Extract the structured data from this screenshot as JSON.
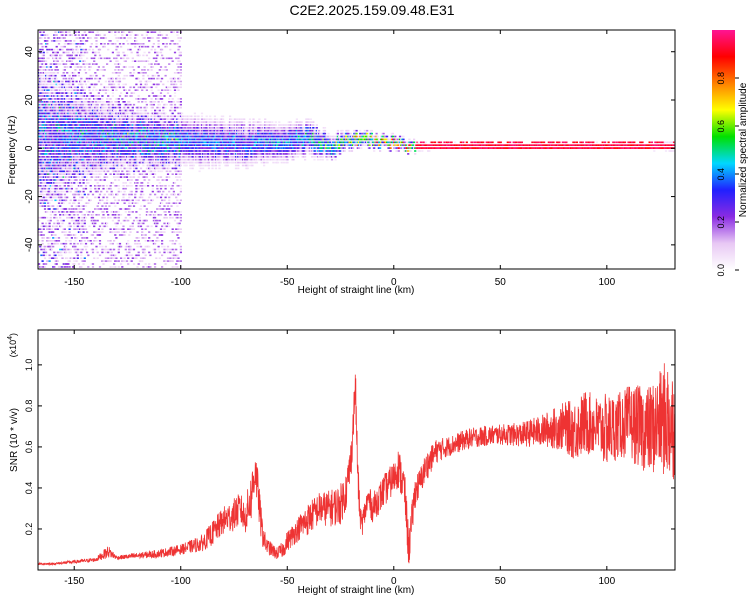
{
  "title": "C2E2.2025.159.09.48.E31",
  "chart_data": [
    {
      "type": "heatmap",
      "xlabel": "Height of straight line (km)",
      "ylabel": "Frequency (Hz)",
      "xlim": [
        -167,
        132
      ],
      "ylim": [
        -50,
        49
      ],
      "xticks": [
        -150,
        -100,
        -50,
        0,
        50,
        100
      ],
      "yticks": [
        -40,
        -20,
        0,
        20,
        40
      ],
      "xtick_labels": [
        "-150",
        "-100",
        "-50",
        "0",
        "50",
        "100"
      ],
      "ytick_labels": [
        "-40",
        "-20",
        "0",
        "20",
        "40"
      ],
      "colorbar": {
        "label": "Normalized spectral amplitude",
        "range": [
          0,
          1
        ],
        "ticks": [
          0,
          0.2,
          0.4,
          0.6,
          0.8
        ],
        "tick_labels": [
          "0.0",
          "0.2",
          "0.4",
          "0.6",
          "0.8"
        ],
        "colormap": "rainbow-white-purple-blue-cyan-green-yellow-orange-red-magenta",
        "colors": [
          "#ffffff",
          "#e8c8f4",
          "#8a2be2",
          "#2020ff",
          "#00d8ff",
          "#00e000",
          "#ffff00",
          "#ff8000",
          "#ff0000",
          "#ff1493"
        ]
      },
      "ridge": {
        "description_free": true,
        "x": [
          -167,
          -150,
          -130,
          -110,
          -90,
          -70,
          -50,
          -40,
          -30,
          -22,
          -18,
          -10,
          0,
          10,
          20,
          50,
          80,
          100,
          120,
          132
        ],
        "center_freq": [
          5,
          4,
          3,
          2,
          2,
          1,
          2,
          3,
          0,
          2,
          3,
          2,
          1,
          0,
          0,
          0,
          0,
          0,
          0,
          0
        ],
        "half_width": [
          30,
          18,
          12,
          10,
          9,
          8,
          7,
          6,
          4,
          3,
          2.5,
          2,
          2,
          1.5,
          1.2,
          1.2,
          1.2,
          1.2,
          1.2,
          1.5
        ],
        "peak_amplitude": [
          0.25,
          0.3,
          0.35,
          0.4,
          0.4,
          0.42,
          0.45,
          0.5,
          0.6,
          0.7,
          0.8,
          0.85,
          0.9,
          0.92,
          0.95,
          0.95,
          0.95,
          0.95,
          0.95,
          0.9
        ]
      }
    },
    {
      "type": "line",
      "xlabel": "Height of straight line (km)",
      "ylabel": "SNR (10 * v/v)",
      "y_multiplier": "(x10",
      "y_multiplier_exp": "4",
      "xlim": [
        -167,
        132
      ],
      "ylim": [
        0,
        1.17
      ],
      "xticks": [
        -150,
        -100,
        -50,
        0,
        50,
        100
      ],
      "yticks": [
        0.2,
        0.4,
        0.6,
        0.8,
        1.0
      ],
      "xtick_labels": [
        "-150",
        "-100",
        "-50",
        "0",
        "50",
        "100"
      ],
      "ytick_labels": [
        "0.2",
        "0.4",
        "0.6",
        "0.8",
        "1.0"
      ],
      "color": "#ee3333",
      "series": [
        {
          "x": [
            -167,
            -160,
            -150,
            -140,
            -134,
            -130,
            -120,
            -110,
            -100,
            -90,
            -85,
            -80,
            -75,
            -72,
            -70,
            -67,
            -65,
            -62,
            -60,
            -55,
            -52,
            -50,
            -45,
            -40,
            -35,
            -30,
            -25,
            -22,
            -20,
            -18,
            -17,
            -16,
            -15,
            -12,
            -10,
            -5,
            0,
            2,
            5,
            7,
            10,
            12,
            15,
            20,
            25,
            30,
            35,
            40,
            50,
            60,
            70,
            80,
            85,
            90,
            95,
            100,
            105,
            110,
            115,
            120,
            125,
            128,
            130,
            132
          ],
          "y": [
            0.03,
            0.03,
            0.04,
            0.05,
            0.09,
            0.06,
            0.07,
            0.08,
            0.1,
            0.13,
            0.18,
            0.24,
            0.27,
            0.3,
            0.25,
            0.35,
            0.5,
            0.2,
            0.12,
            0.08,
            0.1,
            0.14,
            0.2,
            0.25,
            0.3,
            0.3,
            0.32,
            0.4,
            0.55,
            0.9,
            0.5,
            0.28,
            0.22,
            0.35,
            0.3,
            0.38,
            0.45,
            0.5,
            0.4,
            0.1,
            0.38,
            0.42,
            0.5,
            0.58,
            0.6,
            0.62,
            0.64,
            0.65,
            0.66,
            0.66,
            0.68,
            0.7,
            0.68,
            0.72,
            0.7,
            0.68,
            0.7,
            0.72,
            0.7,
            0.68,
            0.72,
            0.74,
            0.72,
            0.7
          ],
          "spread": [
            0.005,
            0.005,
            0.008,
            0.01,
            0.03,
            0.01,
            0.015,
            0.02,
            0.025,
            0.04,
            0.06,
            0.07,
            0.08,
            0.08,
            0.08,
            0.12,
            0.12,
            0.08,
            0.04,
            0.03,
            0.04,
            0.05,
            0.06,
            0.08,
            0.08,
            0.09,
            0.1,
            0.1,
            0.1,
            0.1,
            0.1,
            0.07,
            0.06,
            0.07,
            0.07,
            0.08,
            0.08,
            0.1,
            0.1,
            0.1,
            0.08,
            0.07,
            0.07,
            0.06,
            0.05,
            0.05,
            0.05,
            0.05,
            0.05,
            0.06,
            0.08,
            0.12,
            0.15,
            0.16,
            0.15,
            0.18,
            0.16,
            0.18,
            0.2,
            0.22,
            0.25,
            0.3,
            0.3,
            0.25
          ]
        }
      ]
    }
  ]
}
